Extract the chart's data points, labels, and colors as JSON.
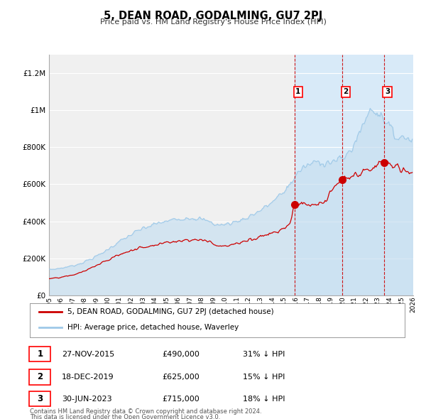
{
  "title": "5, DEAN ROAD, GODALMING, GU7 2PJ",
  "subtitle": "Price paid vs. HM Land Registry's House Price Index (HPI)",
  "ylim": [
    0,
    1300000
  ],
  "ytick_values": [
    0,
    200000,
    400000,
    600000,
    800000,
    1000000,
    1200000
  ],
  "ytick_labels": [
    "£0",
    "£200K",
    "£400K",
    "£600K",
    "£800K",
    "£1M",
    "£1.2M"
  ],
  "x_start_year": 1995,
  "x_end_year": 2026,
  "hpi_color": "#9ec9e8",
  "hpi_fill_color": "#c8dff0",
  "price_color": "#cc0000",
  "background_color": "#ffffff",
  "plot_bg_color": "#f0f0f0",
  "grid_color": "#ffffff",
  "shade_color": "#d8eaf8",
  "sale_points": [
    {
      "label": "1",
      "date_num": 2015.9,
      "price": 490000,
      "date_str": "27-NOV-2015",
      "price_str": "£490,000",
      "hpi_pct": "31% ↓ HPI"
    },
    {
      "label": "2",
      "date_num": 2019.97,
      "price": 625000,
      "date_str": "18-DEC-2019",
      "price_str": "£625,000",
      "hpi_pct": "15% ↓ HPI"
    },
    {
      "label": "3",
      "date_num": 2023.5,
      "price": 715000,
      "date_str": "30-JUN-2023",
      "price_str": "£715,000",
      "hpi_pct": "18% ↓ HPI"
    }
  ],
  "legend_entry1": "5, DEAN ROAD, GODALMING, GU7 2PJ (detached house)",
  "legend_entry2": "HPI: Average price, detached house, Waverley",
  "footer1": "Contains HM Land Registry data © Crown copyright and database right 2024.",
  "footer2": "This data is licensed under the Open Government Licence v3.0."
}
